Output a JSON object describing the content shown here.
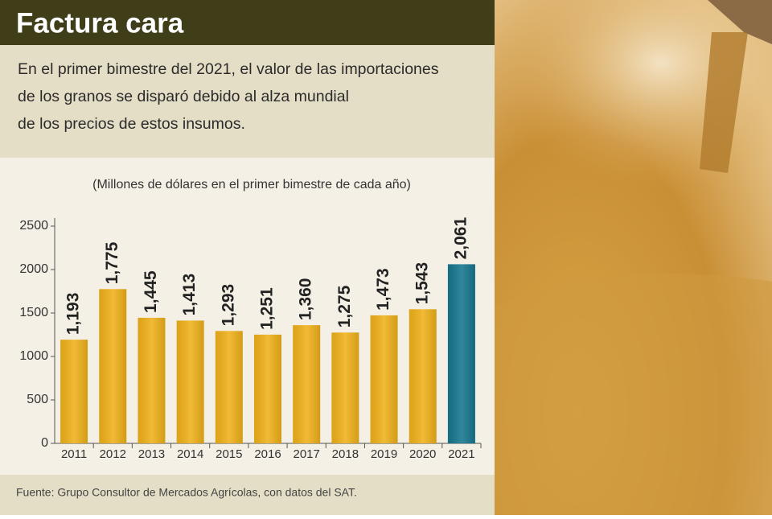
{
  "chart_data": {
    "type": "bar",
    "title": "Factura cara",
    "subtitle": [
      "En el primer bimestre del 2021, el valor de las importaciones",
      "de los granos se disparó debido al alza mundial",
      "de los precios de estos insumos."
    ],
    "y_label": "(Millones de dólares en el primer bimestre de cada año)",
    "categories": [
      "2011",
      "2012",
      "2013",
      "2014",
      "2015",
      "2016",
      "2017",
      "2018",
      "2019",
      "2020",
      "2021"
    ],
    "values": [
      1193,
      1775,
      1445,
      1413,
      1293,
      1251,
      1360,
      1275,
      1473,
      1543,
      2061
    ],
    "value_labels": [
      "1,193",
      "1,775",
      "1,445",
      "1,413",
      "1,293",
      "1,251",
      "1,360",
      "1,275",
      "1,473",
      "1,543",
      "2,061"
    ],
    "colors": [
      "#f0b11a",
      "#f0b11a",
      "#f0b11a",
      "#f0b11a",
      "#f0b11a",
      "#f0b11a",
      "#f0b11a",
      "#f0b11a",
      "#f0b11a",
      "#f0b11a",
      "#17778f"
    ],
    "ylim": [
      0,
      2500
    ],
    "yticks": [
      0,
      500,
      1000,
      1500,
      2000,
      2500
    ],
    "source": "Fuente: Grupo Consultor de Mercados Agrícolas, con datos del SAT."
  }
}
